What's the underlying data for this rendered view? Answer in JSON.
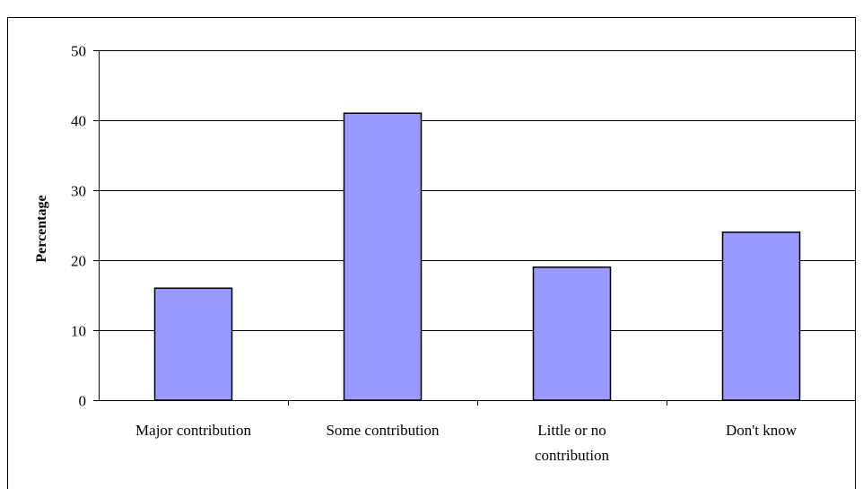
{
  "chart_data": {
    "type": "bar",
    "title": "",
    "xlabel": "",
    "ylabel": "Percentage",
    "ylim": [
      0,
      50
    ],
    "yticks": [
      0,
      10,
      20,
      30,
      40,
      50
    ],
    "grid": true,
    "legend": "none",
    "categories": [
      [
        "Major contribution"
      ],
      [
        "Some contribution"
      ],
      [
        "Little or no",
        "contribution"
      ],
      [
        "Don't know"
      ]
    ],
    "values": [
      16,
      41,
      19,
      24
    ],
    "colors": {
      "bar_fill": "#9999ff",
      "bar_stroke": "#000000",
      "gridline": "#000000",
      "axis": "#000000",
      "background": "#ffffff",
      "frame": "#000000"
    }
  }
}
